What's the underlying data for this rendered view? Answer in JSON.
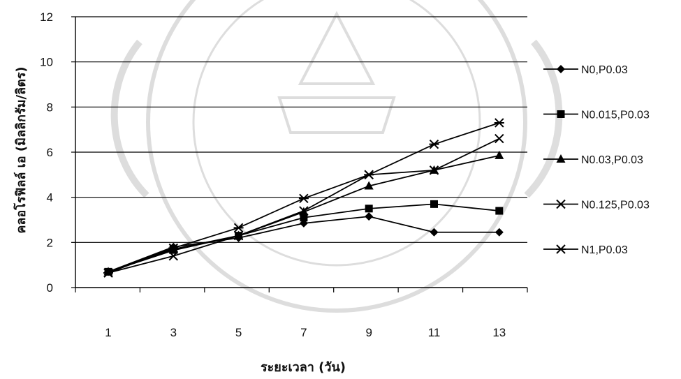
{
  "chart_data": {
    "type": "line",
    "xlabel": "ระยะเวลา (วัน)",
    "ylabel": "คลอโรฟิลล์ เอ (มิลลิกรัม/ลิตร)",
    "categories": [
      "1",
      "3",
      "5",
      "7",
      "9",
      "11",
      "13"
    ],
    "ylim": [
      0,
      12
    ],
    "yticks": [
      "0",
      "2",
      "4",
      "6",
      "8",
      "10",
      "12"
    ],
    "grid": true,
    "legend_position": "right",
    "line_color": "#000000",
    "series": [
      {
        "name": "N0,P0.03",
        "marker": "diamond",
        "values": [
          0.7,
          1.8,
          2.2,
          2.85,
          3.15,
          2.45,
          2.45
        ]
      },
      {
        "name": "N0.015,P0.03",
        "marker": "square",
        "values": [
          0.7,
          1.7,
          2.3,
          3.1,
          3.5,
          3.7,
          3.4
        ]
      },
      {
        "name": "N0.03,P0.03",
        "marker": "triangle",
        "values": [
          0.7,
          1.65,
          2.3,
          3.35,
          4.5,
          5.2,
          5.85
        ]
      },
      {
        "name": "N0.125,P0.03",
        "marker": "x",
        "values": [
          0.65,
          1.4,
          2.3,
          3.4,
          5.0,
          5.2,
          6.6
        ]
      },
      {
        "name": "N1,P0.03",
        "marker": "asterisk",
        "values": [
          0.65,
          1.75,
          2.65,
          3.95,
          5.0,
          6.35,
          7.3
        ]
      }
    ]
  }
}
